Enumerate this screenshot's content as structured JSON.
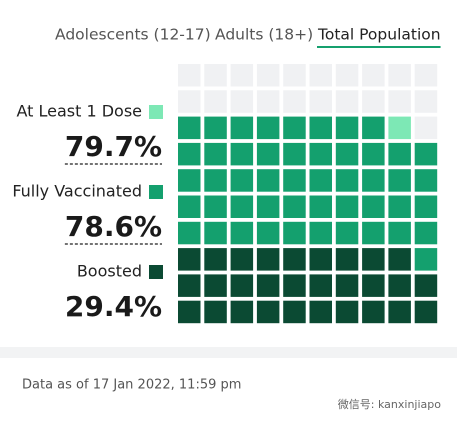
{
  "tabs": {
    "items": [
      "Adolescents (12-17)",
      "Adults (18+)",
      "Total Population"
    ],
    "active": 2
  },
  "chart_data": {
    "type": "waffle",
    "categories": [
      "At Least 1 Dose",
      "Fully Vaccinated",
      "Boosted"
    ],
    "values": [
      79.7,
      78.6,
      29.4
    ],
    "value_labels": [
      "79.7%",
      "78.6%",
      "29.4%"
    ],
    "colors": [
      "#7de8b5",
      "#14a06e",
      "#0b4a33"
    ],
    "empty_color": "#f0f1f3"
  },
  "footer": {
    "note": "Data as of 17 Jan 2022, 11:59 pm",
    "watermark": "微信号: kanxinjiapo"
  }
}
